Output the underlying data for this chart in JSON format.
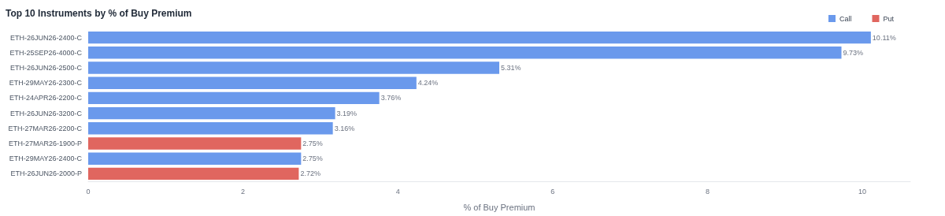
{
  "chart_data": {
    "type": "bar",
    "orientation": "horizontal",
    "title": "Top 10 Instruments by % of Buy Premium",
    "xlabel": "% of Buy Premium",
    "categories": [
      "ETH-26JUN26-2400-C",
      "ETH-25SEP26-4000-C",
      "ETH-26JUN26-2500-C",
      "ETH-29MAY26-2300-C",
      "ETH-24APR26-2200-C",
      "ETH-26JUN26-3200-C",
      "ETH-27MAR26-2200-C",
      "ETH-27MAR26-1900-P",
      "ETH-29MAY26-2400-C",
      "ETH-26JUN26-2000-P"
    ],
    "series": [
      {
        "name": "Call",
        "color": "#6a99ec",
        "values": [
          10.11,
          9.73,
          5.31,
          4.24,
          3.76,
          3.19,
          3.16,
          null,
          2.75,
          null
        ],
        "value_labels": [
          "10.11%",
          "9.73%",
          "5.31%",
          "4.24%",
          "3.76%",
          "3.19%",
          "3.16%",
          null,
          "2.75%",
          null
        ]
      },
      {
        "name": "Put",
        "color": "#e0665f",
        "values": [
          null,
          null,
          null,
          null,
          null,
          null,
          null,
          2.75,
          null,
          2.72
        ],
        "value_labels": [
          null,
          null,
          null,
          null,
          null,
          null,
          null,
          "2.75%",
          null,
          "2.72%"
        ]
      }
    ],
    "xlim": [
      0,
      10.62
    ],
    "xticks": [
      0,
      2,
      4,
      6,
      8,
      10
    ],
    "grid": false,
    "legend": "top right"
  }
}
